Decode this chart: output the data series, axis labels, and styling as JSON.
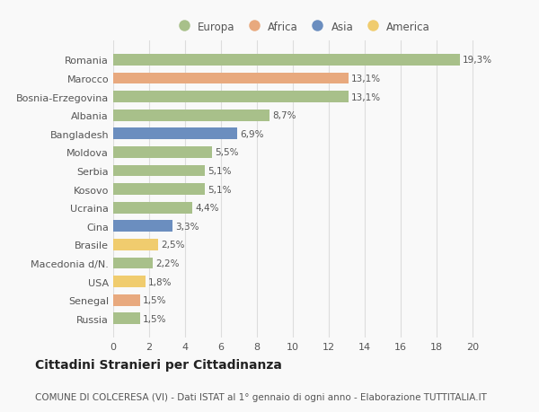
{
  "countries": [
    "Romania",
    "Marocco",
    "Bosnia-Erzegovina",
    "Albania",
    "Bangladesh",
    "Moldova",
    "Serbia",
    "Kosovo",
    "Ucraina",
    "Cina",
    "Brasile",
    "Macedonia d/N.",
    "USA",
    "Senegal",
    "Russia"
  ],
  "values": [
    19.3,
    13.1,
    13.1,
    8.7,
    6.9,
    5.5,
    5.1,
    5.1,
    4.4,
    3.3,
    2.5,
    2.2,
    1.8,
    1.5,
    1.5
  ],
  "labels": [
    "19,3%",
    "13,1%",
    "13,1%",
    "8,7%",
    "6,9%",
    "5,5%",
    "5,1%",
    "5,1%",
    "4,4%",
    "3,3%",
    "2,5%",
    "2,2%",
    "1,8%",
    "1,5%",
    "1,5%"
  ],
  "continents": [
    "Europa",
    "Africa",
    "Europa",
    "Europa",
    "Asia",
    "Europa",
    "Europa",
    "Europa",
    "Europa",
    "Asia",
    "America",
    "Europa",
    "America",
    "Africa",
    "Europa"
  ],
  "colors": {
    "Europa": "#a8c08a",
    "Africa": "#e8a97e",
    "Asia": "#6b8ebf",
    "America": "#f0cc6e"
  },
  "legend_order": [
    "Europa",
    "Africa",
    "Asia",
    "America"
  ],
  "xlim": [
    0,
    21
  ],
  "xticks": [
    0,
    2,
    4,
    6,
    8,
    10,
    12,
    14,
    16,
    18,
    20
  ],
  "title": "Cittadini Stranieri per Cittadinanza",
  "subtitle": "COMUNE DI COLCERESA (VI) - Dati ISTAT al 1° gennaio di ogni anno - Elaborazione TUTTITALIA.IT",
  "background_color": "#f9f9f9",
  "bar_height": 0.62,
  "grid_color": "#dddddd",
  "text_color": "#555555",
  "title_fontsize": 10,
  "subtitle_fontsize": 7.5,
  "label_fontsize": 7.5,
  "tick_fontsize": 8,
  "legend_fontsize": 8.5
}
